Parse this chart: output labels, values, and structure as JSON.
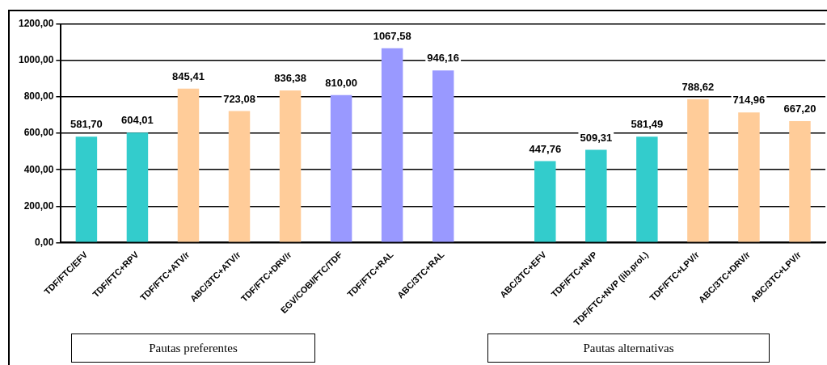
{
  "chart_data": {
    "type": "bar",
    "categories": [
      "TDF/FTC/EFV",
      "TDF/FTC+RPV",
      "TDF/FTC+ATV/r",
      "ABC/3TC+ATV/r",
      "TDF/FTC+DRV/r",
      "EGV/COBI/FTC/TDF",
      "TDF/FTC+RAL",
      "ABC/3TC+RAL",
      null,
      "ABC/3TC+EFV",
      "TDF/FTC+NVP",
      "TDF/FTC+NVP (lib.prol.)",
      "TDF/FTC+LPV/r",
      "ABC/3TC+DRV/r",
      "ABC/3TC+LPV/r"
    ],
    "values": [
      581.7,
      604.01,
      845.41,
      723.08,
      836.38,
      810.0,
      1067.58,
      946.16,
      null,
      447.76,
      509.31,
      581.49,
      788.62,
      714.96,
      667.2
    ],
    "value_labels": [
      "581,70",
      "604,01",
      "845,41",
      "723,08",
      "836,38",
      "810,00",
      "1067,58",
      "946,16",
      null,
      "447,76",
      "509,31",
      "581,49",
      "788,62",
      "714,96",
      "667,20"
    ],
    "colors": [
      "#33cccc",
      "#33cccc",
      "#ffcc99",
      "#ffcc99",
      "#ffcc99",
      "#9999ff",
      "#9999ff",
      "#9999ff",
      "#ffffff",
      "#33cccc",
      "#33cccc",
      "#33cccc",
      "#ffcc99",
      "#ffcc99",
      "#ffcc99"
    ],
    "ylim": [
      0,
      1200
    ],
    "yticks": [
      {
        "value": 0,
        "label": "0,00"
      },
      {
        "value": 200,
        "label": "200,00"
      },
      {
        "value": 400,
        "label": "400,00"
      },
      {
        "value": 600,
        "label": "600,00"
      },
      {
        "value": 800,
        "label": "800,00"
      },
      {
        "value": 1000,
        "label": "1000,00"
      },
      {
        "value": 1200,
        "label": "1200,00"
      }
    ],
    "grid": "y",
    "annotations": [
      "Pautas preferentes",
      "Pautas alternativas"
    ]
  }
}
